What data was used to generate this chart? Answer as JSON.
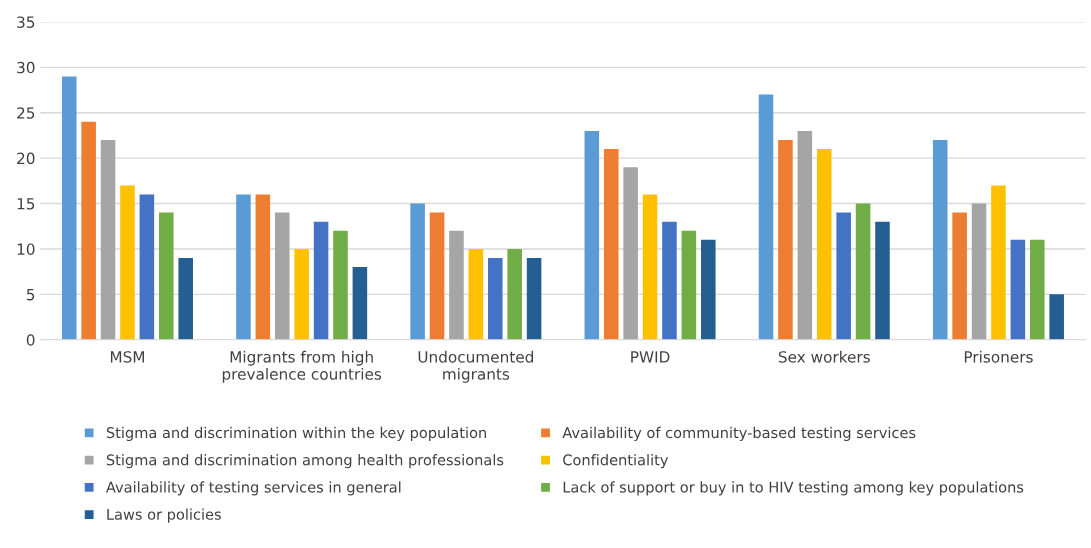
{
  "chart_data": {
    "type": "bar",
    "categories": [
      "MSM",
      "Migrants from high\nprevalence countries",
      "Undocumented\nmigrants",
      "PWID",
      "Sex workers",
      "Prisoners"
    ],
    "series": [
      {
        "name": "Stigma and discrimination within the key population",
        "color": "#5b9bd5",
        "values": [
          29,
          16,
          15,
          23,
          27,
          22
        ]
      },
      {
        "name": "Availability of community-based testing services",
        "color": "#ed7d31",
        "values": [
          24,
          16,
          14,
          21,
          22,
          14
        ]
      },
      {
        "name": "Stigma and discrimination among health professionals",
        "color": "#a5a5a5",
        "values": [
          22,
          14,
          12,
          19,
          23,
          15
        ]
      },
      {
        "name": "Confidentiality",
        "color": "#ffc000",
        "values": [
          17,
          10,
          10,
          16,
          21,
          17
        ]
      },
      {
        "name": "Availability of testing services in general",
        "color": "#4472c4",
        "values": [
          16,
          13,
          9,
          13,
          14,
          11
        ]
      },
      {
        "name": "Lack of support or buy in to HIV testing among key populations",
        "color": "#70ad47",
        "values": [
          14,
          12,
          10,
          12,
          15,
          11
        ]
      },
      {
        "name": "Laws or policies",
        "color": "#255e91",
        "values": [
          9,
          8,
          9,
          11,
          13,
          5
        ]
      }
    ],
    "ylim": [
      0,
      35
    ],
    "yticks": [
      0,
      5,
      10,
      15,
      20,
      25,
      30,
      35
    ],
    "grid": "y",
    "legend": "bottom"
  }
}
